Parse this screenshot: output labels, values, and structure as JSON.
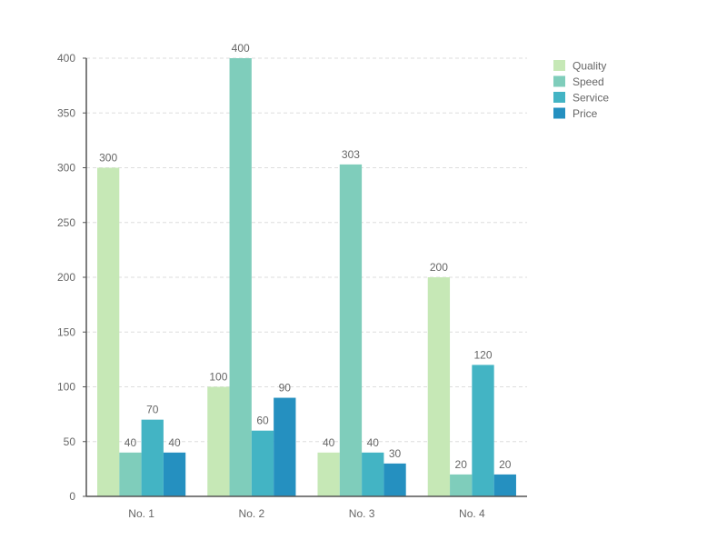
{
  "chart_data": {
    "type": "bar",
    "title": "",
    "xlabel": "",
    "ylabel": "",
    "categories": [
      "No. 1",
      "No. 2",
      "No. 3",
      "No. 4"
    ],
    "series": [
      {
        "name": "Quality",
        "color": "#c6e8b6",
        "values": [
          300,
          100,
          40,
          200
        ]
      },
      {
        "name": "Speed",
        "color": "#7fcdbb",
        "values": [
          40,
          400,
          303,
          20
        ]
      },
      {
        "name": "Service",
        "color": "#43b4c4",
        "values": [
          70,
          60,
          40,
          120
        ]
      },
      {
        "name": "Price",
        "color": "#2590c0",
        "values": [
          40,
          90,
          30,
          20
        ]
      }
    ],
    "ylim": [
      0,
      400
    ],
    "yticks": [
      0,
      50,
      100,
      150,
      200,
      250,
      300,
      350,
      400
    ],
    "grid": true,
    "legend": "top-right",
    "data_labels": true
  }
}
